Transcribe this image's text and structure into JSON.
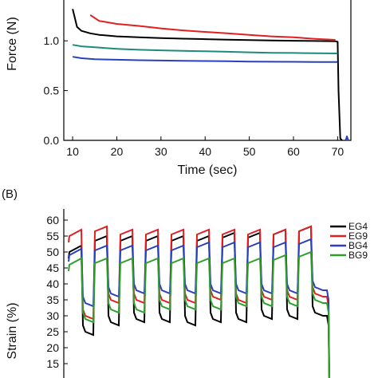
{
  "chart_data": [
    {
      "type": "line",
      "panel_label": "",
      "xlabel": "Time (sec)",
      "ylabel": "Force (N)",
      "xlim": [
        8,
        73
      ],
      "ylim": [
        0.0,
        1.25
      ],
      "x_ticks": [
        "10",
        "20",
        "30",
        "40",
        "50",
        "60",
        "70"
      ],
      "y_ticks": [
        "0.0",
        "0.5",
        "1.0"
      ],
      "grid": false,
      "series": [
        {
          "color": "#000000",
          "x": [
            10,
            11,
            12,
            14,
            16,
            20,
            25,
            30,
            35,
            40,
            45,
            50,
            55,
            60,
            65,
            69.5,
            70,
            70.2,
            70.6,
            71
          ],
          "y": [
            1.32,
            1.14,
            1.1,
            1.075,
            1.06,
            1.045,
            1.035,
            1.028,
            1.022,
            1.017,
            1.012,
            1.008,
            1.004,
            1.001,
            0.998,
            0.995,
            0.99,
            0.5,
            0.02,
            0.0
          ]
        },
        {
          "color": "#e02020",
          "x": [
            14,
            16,
            20,
            25,
            30,
            35,
            40,
            45,
            50,
            55,
            60,
            65,
            69.5
          ],
          "y": [
            1.26,
            1.2,
            1.17,
            1.15,
            1.125,
            1.105,
            1.09,
            1.075,
            1.06,
            1.045,
            1.035,
            1.02,
            1.01
          ]
        },
        {
          "color": "#1f8a7a",
          "x": [
            10,
            12,
            15,
            20,
            25,
            30,
            35,
            40,
            45,
            50,
            55,
            60,
            65,
            70
          ],
          "y": [
            0.96,
            0.945,
            0.935,
            0.92,
            0.91,
            0.905,
            0.9,
            0.895,
            0.89,
            0.885,
            0.88,
            0.878,
            0.875,
            0.873
          ]
        },
        {
          "color": "#2a3fbf",
          "x": [
            10,
            12,
            15,
            20,
            25,
            30,
            35,
            40,
            45,
            50,
            55,
            60,
            65,
            70
          ],
          "y": [
            0.84,
            0.825,
            0.815,
            0.81,
            0.805,
            0.802,
            0.8,
            0.797,
            0.795,
            0.792,
            0.79,
            0.789,
            0.788,
            0.787
          ]
        },
        {
          "color": "#2a3fbf",
          "x": [
            71.8,
            72.1,
            72.4
          ],
          "y": [
            0.0,
            0.04,
            0.0
          ]
        }
      ]
    },
    {
      "type": "line",
      "panel_label": "(B)",
      "xlabel": "",
      "ylabel": "Strain (%)",
      "ylim": [
        13,
        61
      ],
      "y_ticks": [
        "15",
        "20",
        "25",
        "30",
        "35",
        "40",
        "45",
        "50",
        "55",
        "60"
      ],
      "grid": false,
      "legend_position": "right",
      "cycles": 10,
      "series": [
        {
          "name": "EG4",
          "color": "#000000",
          "high": [
            52,
            55,
            55,
            55,
            55,
            55,
            56,
            56,
            57,
            58
          ],
          "low": [
            24,
            27,
            28,
            28,
            27,
            28,
            28,
            29,
            29,
            30
          ]
        },
        {
          "name": "EG9",
          "color": "#e02020",
          "high": [
            57,
            58,
            57,
            57,
            57,
            57,
            57,
            57,
            57,
            58
          ],
          "low": [
            29,
            34,
            34,
            34,
            34,
            35,
            34,
            35,
            35,
            36
          ]
        },
        {
          "name": "BG4",
          "color": "#2a3fbf",
          "high": [
            51,
            52,
            52,
            52,
            52,
            53,
            53,
            53,
            53,
            54
          ],
          "low": [
            33,
            36,
            37,
            37,
            37,
            37,
            37,
            37,
            37,
            38
          ]
        },
        {
          "name": "BG9",
          "color": "#2aa02a",
          "high": [
            48,
            48,
            48,
            48,
            48,
            48,
            48,
            48,
            49,
            50
          ],
          "low": [
            28,
            31,
            31,
            32,
            32,
            32,
            33,
            33,
            33,
            34
          ]
        }
      ]
    }
  ]
}
